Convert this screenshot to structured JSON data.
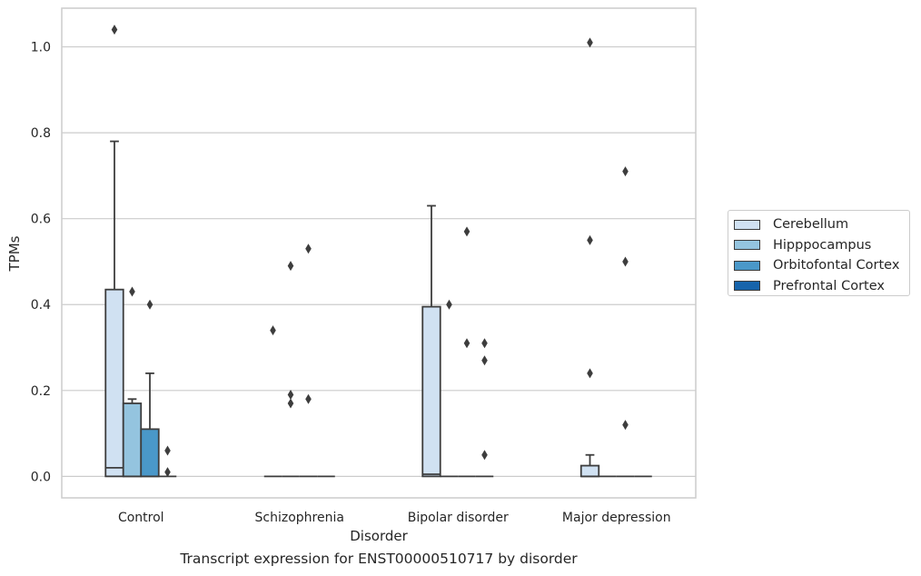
{
  "chart_data": {
    "type": "boxplot",
    "title": "Transcript expression for ENST00000510717 by disorder",
    "xlabel": "Disorder",
    "ylabel": "TPMs",
    "ylim": [
      -0.05,
      1.09
    ],
    "yticks": [
      "0.0",
      "0.2",
      "0.4",
      "0.6",
      "0.8",
      "1.0"
    ],
    "grid": true,
    "legend_position": "right",
    "categories": [
      "Control",
      "Schizophrenia",
      "Bipolar disorder",
      "Major depression"
    ],
    "series": [
      {
        "name": "Cerebellum",
        "color": "#d0e1f2",
        "boxes": [
          {
            "q1": 0.0,
            "median": 0.02,
            "q3": 0.435,
            "whisker_low": 0.0,
            "whisker_high": 0.78,
            "outliers": [
              1.04
            ]
          },
          {
            "q1": 0.0,
            "median": 0.0,
            "q3": 0.0,
            "whisker_low": 0.0,
            "whisker_high": 0.0,
            "outliers": [
              0.34
            ]
          },
          {
            "q1": 0.0,
            "median": 0.005,
            "q3": 0.395,
            "whisker_low": 0.0,
            "whisker_high": 0.63,
            "outliers": []
          },
          {
            "q1": 0.0,
            "median": 0.0,
            "q3": 0.025,
            "whisker_low": 0.0,
            "whisker_high": 0.05,
            "outliers": [
              1.01,
              0.55,
              0.24
            ]
          }
        ]
      },
      {
        "name": "Hipppocampus",
        "color": "#94c4df",
        "boxes": [
          {
            "q1": 0.0,
            "median": 0.0,
            "q3": 0.17,
            "whisker_low": 0.0,
            "whisker_high": 0.18,
            "outliers": [
              0.43
            ]
          },
          {
            "q1": 0.0,
            "median": 0.0,
            "q3": 0.0,
            "whisker_low": 0.0,
            "whisker_high": 0.0,
            "outliers": [
              0.49,
              0.19,
              0.17
            ]
          },
          {
            "q1": 0.0,
            "median": 0.0,
            "q3": 0.0,
            "whisker_low": 0.0,
            "whisker_high": 0.0,
            "outliers": [
              0.4
            ]
          },
          {
            "q1": 0.0,
            "median": 0.0,
            "q3": 0.0,
            "whisker_low": 0.0,
            "whisker_high": 0.0,
            "outliers": []
          }
        ]
      },
      {
        "name": "Orbitofontal Cortex",
        "color": "#4a98c9",
        "boxes": [
          {
            "q1": 0.0,
            "median": 0.0,
            "q3": 0.11,
            "whisker_low": 0.0,
            "whisker_high": 0.24,
            "outliers": [
              0.4
            ]
          },
          {
            "q1": 0.0,
            "median": 0.0,
            "q3": 0.0,
            "whisker_low": 0.0,
            "whisker_high": 0.0,
            "outliers": [
              0.53,
              0.18
            ]
          },
          {
            "q1": 0.0,
            "median": 0.0,
            "q3": 0.0,
            "whisker_low": 0.0,
            "whisker_high": 0.0,
            "outliers": [
              0.57,
              0.31
            ]
          },
          {
            "q1": 0.0,
            "median": 0.0,
            "q3": 0.0,
            "whisker_low": 0.0,
            "whisker_high": 0.0,
            "outliers": [
              0.71,
              0.5,
              0.12
            ]
          }
        ]
      },
      {
        "name": "Prefrontal Cortex",
        "color": "#1764ab",
        "boxes": [
          {
            "q1": 0.0,
            "median": 0.0,
            "q3": 0.0,
            "whisker_low": 0.0,
            "whisker_high": 0.0,
            "outliers": [
              0.06,
              0.01
            ]
          },
          {
            "q1": 0.0,
            "median": 0.0,
            "q3": 0.0,
            "whisker_low": 0.0,
            "whisker_high": 0.0,
            "outliers": []
          },
          {
            "q1": 0.0,
            "median": 0.0,
            "q3": 0.0,
            "whisker_low": 0.0,
            "whisker_high": 0.0,
            "outliers": [
              0.31,
              0.27,
              0.05
            ]
          },
          {
            "q1": 0.0,
            "median": 0.0,
            "q3": 0.0,
            "whisker_low": 0.0,
            "whisker_high": 0.0,
            "outliers": []
          }
        ]
      }
    ]
  }
}
